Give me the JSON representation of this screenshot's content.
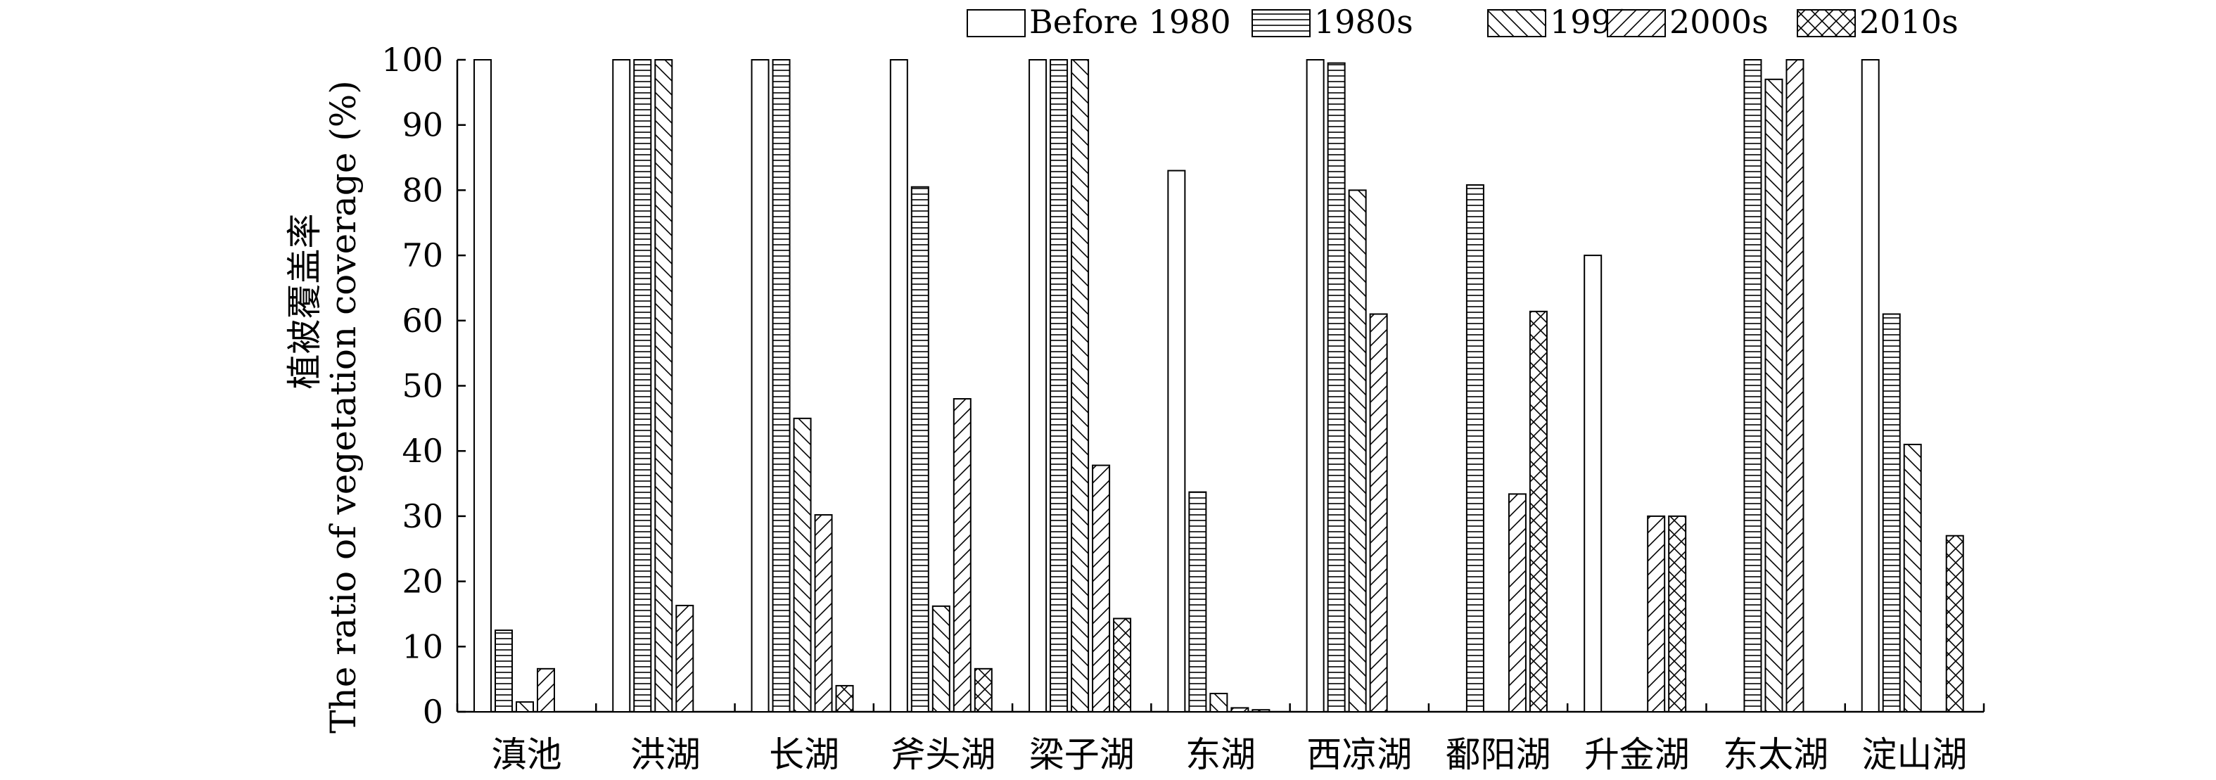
{
  "chart_data": {
    "type": "bar",
    "ylabel_cn": "植被覆盖率",
    "ylabel": "The ratio of vegetation coverage (%)",
    "ylim": [
      0,
      100
    ],
    "yticks": [
      0,
      10,
      20,
      30,
      40,
      50,
      60,
      70,
      80,
      90,
      100
    ],
    "grid": false,
    "legend_position": "top-right",
    "categories": [
      "滇池",
      "洪湖",
      "长湖",
      "斧头湖",
      "梁子湖",
      "东湖",
      "西凉湖",
      "鄱阳湖",
      "升金湖",
      "东太湖",
      "淀山湖"
    ],
    "series": [
      {
        "name": "Before 1980",
        "pattern": "plain",
        "values": [
          100,
          100,
          100,
          100,
          100,
          83,
          100,
          null,
          70,
          null,
          100
        ]
      },
      {
        "name": "1980s",
        "pattern": "horizontal",
        "values": [
          12.5,
          100,
          100,
          80.5,
          100,
          33.7,
          99.5,
          80.8,
          null,
          100,
          61
        ]
      },
      {
        "name": "1990s",
        "pattern": "backslash",
        "values": [
          1.5,
          100,
          45,
          16.2,
          100,
          2.8,
          80,
          null,
          null,
          97,
          41
        ]
      },
      {
        "name": "2000s",
        "pattern": "slash",
        "values": [
          6.6,
          16.3,
          30.2,
          48,
          37.8,
          0.6,
          61,
          33.4,
          30,
          100,
          null
        ]
      },
      {
        "name": "2010s",
        "pattern": "cross",
        "values": [
          null,
          null,
          4,
          6.6,
          14.3,
          0.3,
          null,
          61.4,
          30,
          null,
          27
        ]
      }
    ]
  }
}
